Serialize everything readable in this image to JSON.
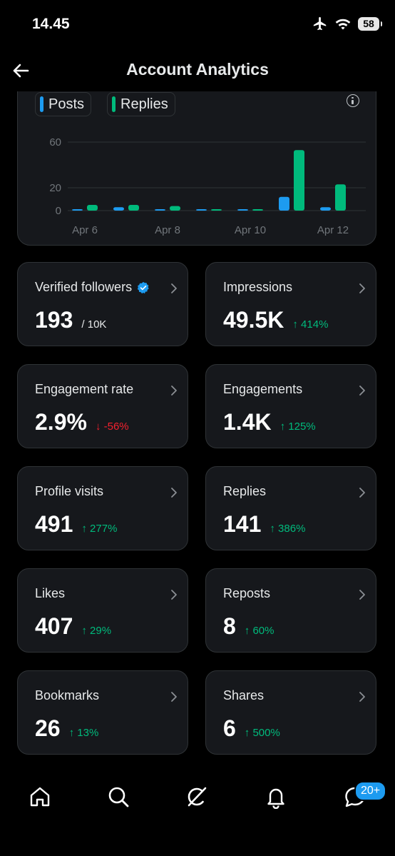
{
  "status_bar": {
    "time": "14.45",
    "battery": "58"
  },
  "header": {
    "title": "Account Analytics"
  },
  "legend": [
    {
      "label": "Posts",
      "color": "#1d9bf0"
    },
    {
      "label": "Replies",
      "color": "#00ba7c"
    }
  ],
  "chart_data": {
    "type": "bar",
    "categories": [
      "Apr 6",
      "Apr 7",
      "Apr 8",
      "Apr 9",
      "Apr 10",
      "Apr 11",
      "Apr 12"
    ],
    "series": [
      {
        "name": "Posts",
        "color": "#1d9bf0",
        "values": [
          1,
          3,
          1,
          1,
          1,
          12,
          3
        ]
      },
      {
        "name": "Replies",
        "color": "#00ba7c",
        "values": [
          5,
          5,
          4,
          1,
          0,
          53,
          23
        ]
      }
    ],
    "yticks": [
      "60",
      "20",
      "0"
    ],
    "ytick_values": [
      60,
      20,
      0
    ],
    "xtick_labels": [
      "Apr 6",
      "Apr 8",
      "Apr 10",
      "Apr 12"
    ],
    "xtick_index": [
      0,
      2,
      4,
      6
    ],
    "ylim": [
      0,
      65
    ]
  },
  "metrics": [
    {
      "label": "Verified followers",
      "value": "193",
      "sub": "/ 10K",
      "verified": true
    },
    {
      "label": "Impressions",
      "value": "49.5K",
      "delta": "↑ 414%",
      "direction": "up"
    },
    {
      "label": "Engagement rate",
      "value": "2.9%",
      "delta": "↓ -56%",
      "direction": "down"
    },
    {
      "label": "Engagements",
      "value": "1.4K",
      "delta": "↑ 125%",
      "direction": "up"
    },
    {
      "label": "Profile visits",
      "value": "491",
      "delta": "↑ 277%",
      "direction": "up"
    },
    {
      "label": "Replies",
      "value": "141",
      "delta": "↑ 386%",
      "direction": "up"
    },
    {
      "label": "Likes",
      "value": "407",
      "delta": "↑ 29%",
      "direction": "up"
    },
    {
      "label": "Reposts",
      "value": "8",
      "delta": "↑ 60%",
      "direction": "up"
    },
    {
      "label": "Bookmarks",
      "value": "26",
      "delta": "↑ 13%",
      "direction": "up"
    },
    {
      "label": "Shares",
      "value": "6",
      "delta": "↑ 500%",
      "direction": "up"
    }
  ],
  "bottom_nav": {
    "items": [
      "home-icon",
      "search-icon",
      "grok-icon",
      "notifications-icon",
      "messages-icon"
    ],
    "badge": "20+"
  }
}
